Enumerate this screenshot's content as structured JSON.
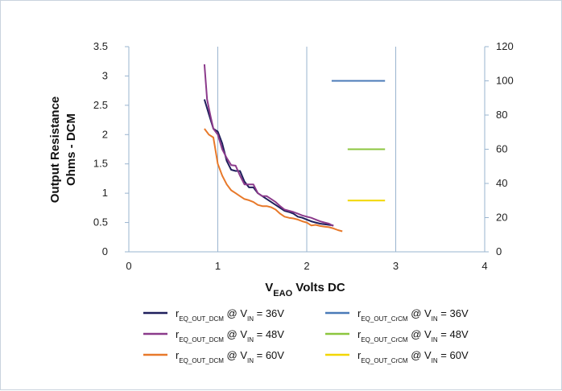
{
  "chart_data": {
    "type": "line",
    "xlabel": "V",
    "xlabel_sub": "EAO",
    "xlabel_rest": " Volts DC",
    "ylabel_line1": "Output Resistance",
    "ylabel_line2": "Ohms - DCM",
    "xlim": [
      0,
      4
    ],
    "ylim": [
      0,
      3.5
    ],
    "y2lim": [
      0,
      120
    ],
    "x_ticks": [
      "0",
      "1",
      "2",
      "3",
      "4"
    ],
    "y_ticks": [
      "0",
      "0.5",
      "1",
      "1.5",
      "2",
      "2.5",
      "3",
      "3.5"
    ],
    "y2_ticks": [
      "0",
      "20",
      "40",
      "60",
      "80",
      "100",
      "120"
    ],
    "grid": "vertical",
    "legend_position": "bottom",
    "series": [
      {
        "name_main": "r",
        "name_sub": "EQ_OUT_DCM",
        "name_mid": " @ V",
        "name_sub2": "IN",
        "name_end": " = 36V",
        "color": "#1f1f5c",
        "axis": "left",
        "x": [
          0.85,
          0.9,
          0.95,
          1.0,
          1.05,
          1.1,
          1.15,
          1.2,
          1.25,
          1.3,
          1.35,
          1.4,
          1.45,
          1.5,
          1.55,
          1.6,
          1.65,
          1.7,
          1.75,
          1.8,
          1.85,
          1.9,
          1.95,
          2.0,
          2.05,
          2.1,
          2.15,
          2.2,
          2.25,
          2.3
        ],
        "y": [
          2.6,
          2.35,
          2.1,
          2.05,
          1.85,
          1.55,
          1.4,
          1.38,
          1.38,
          1.2,
          1.1,
          1.1,
          1.0,
          0.95,
          0.9,
          0.85,
          0.8,
          0.75,
          0.7,
          0.68,
          0.65,
          0.6,
          0.58,
          0.55,
          0.52,
          0.5,
          0.48,
          0.47,
          0.46,
          0.45
        ]
      },
      {
        "name_main": "r",
        "name_sub": "EQ_OUT_DCM",
        "name_mid": " @ V",
        "name_sub2": "IN",
        "name_end": " = 48V",
        "color": "#8b3a8b",
        "axis": "left",
        "x": [
          0.85,
          0.88,
          0.92,
          0.95,
          1.0,
          1.05,
          1.1,
          1.15,
          1.2,
          1.25,
          1.3,
          1.35,
          1.4,
          1.45,
          1.5,
          1.55,
          1.6,
          1.65,
          1.7,
          1.75,
          1.8,
          1.85,
          1.9,
          1.95,
          2.0,
          2.05,
          2.1,
          2.15,
          2.2,
          2.25,
          2.3
        ],
        "y": [
          3.2,
          2.6,
          2.3,
          2.1,
          2.0,
          1.75,
          1.6,
          1.48,
          1.47,
          1.3,
          1.15,
          1.15,
          1.15,
          1.0,
          0.95,
          0.95,
          0.9,
          0.85,
          0.78,
          0.72,
          0.7,
          0.68,
          0.65,
          0.62,
          0.6,
          0.58,
          0.55,
          0.52,
          0.5,
          0.48,
          0.44
        ]
      },
      {
        "name_main": "r",
        "name_sub": "EQ_OUT_DCM",
        "name_mid": " @ V",
        "name_sub2": "IN",
        "name_end": " = 60V",
        "color": "#e8792a",
        "axis": "left",
        "x": [
          0.85,
          0.9,
          0.95,
          1.0,
          1.05,
          1.1,
          1.15,
          1.2,
          1.25,
          1.3,
          1.35,
          1.4,
          1.45,
          1.5,
          1.55,
          1.6,
          1.65,
          1.7,
          1.75,
          1.8,
          1.85,
          1.9,
          1.95,
          2.0,
          2.05,
          2.1,
          2.15,
          2.2,
          2.25,
          2.3,
          2.35,
          2.4
        ],
        "y": [
          2.1,
          2.0,
          1.95,
          1.5,
          1.3,
          1.15,
          1.05,
          1.0,
          0.95,
          0.9,
          0.88,
          0.85,
          0.8,
          0.78,
          0.78,
          0.76,
          0.72,
          0.65,
          0.6,
          0.58,
          0.57,
          0.55,
          0.52,
          0.5,
          0.45,
          0.46,
          0.44,
          0.43,
          0.42,
          0.4,
          0.37,
          0.35
        ]
      },
      {
        "name_main": "r",
        "name_sub": "EQ_OUT_CrCM",
        "name_mid": " @ V",
        "name_sub2": "IN",
        "name_end": " = 36V",
        "color": "#4a7ab8",
        "axis": "right",
        "x": [
          2.28,
          2.88
        ],
        "y": [
          100,
          100
        ]
      },
      {
        "name_main": "r",
        "name_sub": "EQ_OUT_CrCM",
        "name_mid": " @ V",
        "name_sub2": "IN",
        "name_end": " = 48V",
        "color": "#8cc63f",
        "axis": "right",
        "x": [
          2.46,
          2.88
        ],
        "y": [
          60,
          60
        ]
      },
      {
        "name_main": "r",
        "name_sub": "EQ_OUT_CrCM",
        "name_mid": " @ V",
        "name_sub2": "IN",
        "name_end": " = 60V",
        "color": "#f2d600",
        "axis": "right",
        "x": [
          2.46,
          2.88
        ],
        "y": [
          30,
          30
        ]
      }
    ]
  }
}
